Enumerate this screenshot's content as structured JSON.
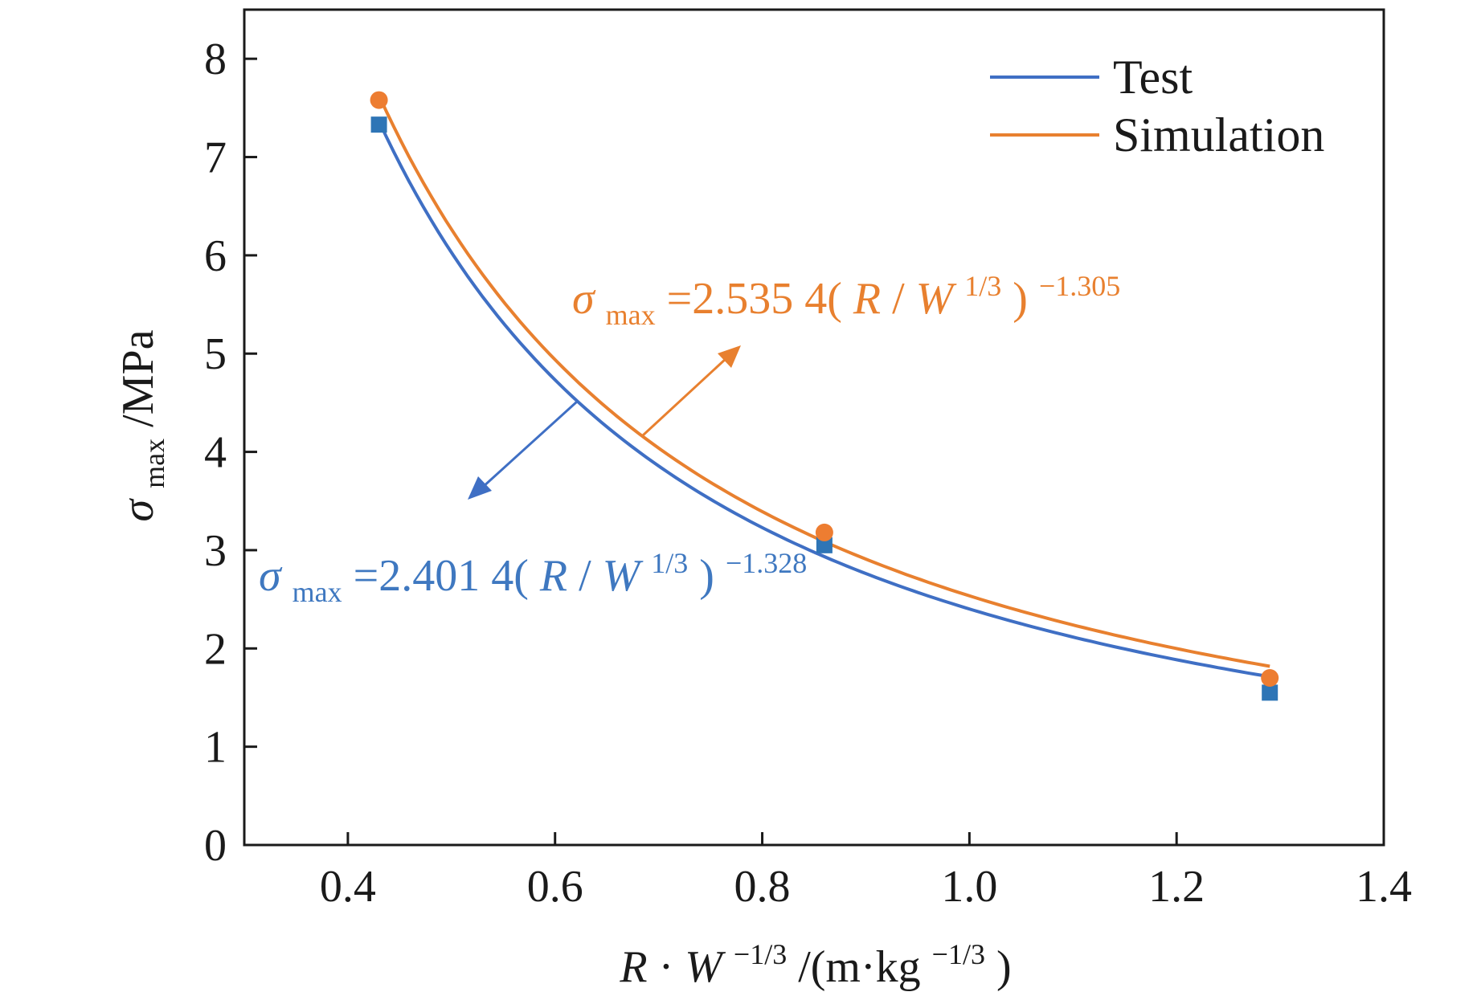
{
  "chart_data": {
    "type": "scatter",
    "xlabel": {
      "var1": "R",
      "dot": "·",
      "var2": "W",
      "exp1": "−1/3",
      "unit_open": "/(m·kg",
      "exp2": "−1/3",
      "unit_close": ")"
    },
    "ylabel": {
      "sym": "σ",
      "sub": "max",
      "unit": "/MPa"
    },
    "xlim": [
      0.3,
      1.4
    ],
    "ylim": [
      0,
      8.5
    ],
    "xticks": [
      "0.4",
      "0.6",
      "0.8",
      "1.0",
      "1.2",
      "1.4"
    ],
    "xtick_values": [
      0.4,
      0.6,
      0.8,
      1.0,
      1.2,
      1.4
    ],
    "yticks": [
      "0",
      "1",
      "2",
      "3",
      "4",
      "5",
      "6",
      "7",
      "8"
    ],
    "ytick_values": [
      0,
      1,
      2,
      3,
      4,
      5,
      6,
      7,
      8
    ],
    "grid": false,
    "legend_position": "top-right",
    "series": [
      {
        "name": "Test",
        "color": "#3f6fc4",
        "marker": "square",
        "marker_color": "#2e75b6",
        "x": [
          0.43,
          0.86,
          1.29
        ],
        "y": [
          7.33,
          3.05,
          1.55
        ],
        "fit": {
          "a": 2.4014,
          "b": -1.328,
          "x_range": [
            0.43,
            1.29
          ]
        }
      },
      {
        "name": "Simulation",
        "color": "#e8802f",
        "marker": "circle",
        "marker_color": "#ed7d31",
        "x": [
          0.43,
          0.86,
          1.29
        ],
        "y": [
          7.58,
          3.18,
          1.7
        ],
        "fit": {
          "a": 2.5354,
          "b": -1.305,
          "x_range": [
            0.43,
            1.29
          ]
        }
      }
    ],
    "annotations": [
      {
        "series": "Simulation",
        "sym": "σ",
        "sub": "max",
        "eq": "=2.535 4(",
        "R": "R",
        "slash": "/",
        "W": "W",
        "sup_w": "1/3",
        "close": ")",
        "exp": "−1.305",
        "color": "#e8802f"
      },
      {
        "series": "Test",
        "sym": "σ",
        "sub": "max",
        "eq": "=2.401 4(",
        "R": "R",
        "slash": "/",
        "W": "W",
        "sup_w": "1/3",
        "close": ")",
        "exp": "−1.328",
        "color": "#3f78c0"
      }
    ]
  }
}
